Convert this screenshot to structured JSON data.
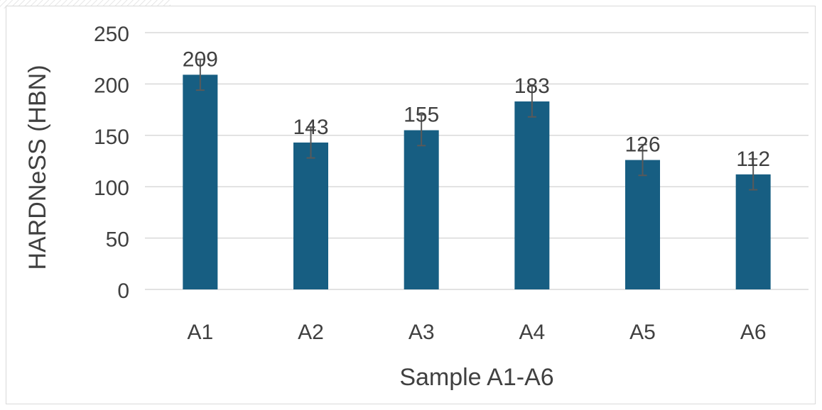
{
  "chart_data": {
    "type": "bar",
    "categories": [
      "A1",
      "A2",
      "A3",
      "A4",
      "A5",
      "A6"
    ],
    "values": [
      209,
      143,
      155,
      183,
      126,
      112
    ],
    "data_labels": [
      "209",
      "143",
      "155",
      "183",
      "126",
      "112"
    ],
    "error": [
      15,
      15,
      15,
      15,
      15,
      15
    ],
    "title": "",
    "xlabel": "Sample A1-A6",
    "ylabel": "HARDNeSS (HBN)",
    "ylim": [
      0,
      250
    ],
    "yticks": [
      0,
      50,
      100,
      150,
      200,
      250
    ],
    "ytick_labels": [
      "0",
      "50",
      "100",
      "150",
      "200",
      "250"
    ],
    "grid": true,
    "legend": "none",
    "bar_color": "#175e82",
    "error_color": "#595959",
    "grid_color": "#d9d9d9",
    "text_color": "#404040"
  }
}
